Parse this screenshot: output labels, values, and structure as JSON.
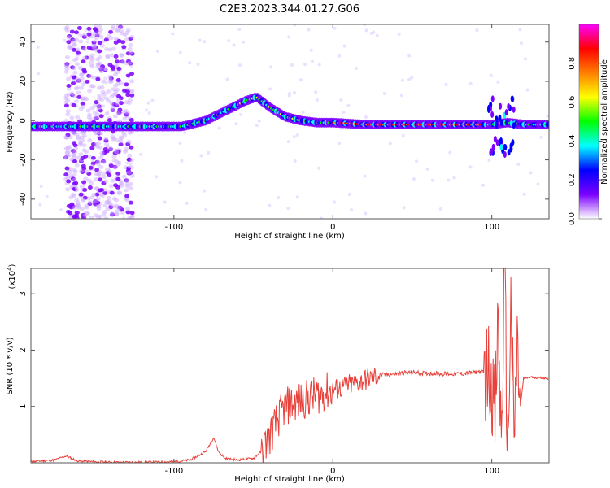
{
  "title": "C2E3.2023.344.01.27.G06",
  "chart_data": [
    {
      "type": "heatmap",
      "title": "C2E3.2023.344.01.27.G06",
      "xlabel": "Height of straight line (km)",
      "ylabel": "Frequency (Hz)",
      "xlim": [
        -190,
        136
      ],
      "ylim": [
        -50,
        49
      ],
      "xticks": [
        -100,
        0,
        100
      ],
      "yticks": [
        -40,
        -20,
        0,
        20,
        40
      ],
      "colorbar": {
        "label": "Normalized spectral amplitude",
        "range": [
          0.0,
          1.0
        ],
        "ticks": [
          "0.0",
          "0.2",
          "0.4",
          "0.6",
          "0.8"
        ],
        "colors": [
          "#ffffff",
          "#7b00ff",
          "#0000ff",
          "#00ffff",
          "#00ff00",
          "#ffff00",
          "#ff8000",
          "#ff0000",
          "#ff00ff"
        ]
      },
      "ridge": {
        "x": [
          -190,
          -160,
          -130,
          -110,
          -95,
          -80,
          -65,
          -55,
          -48,
          -40,
          -30,
          -20,
          -10,
          0,
          20,
          50,
          80,
          90,
          100,
          110,
          120,
          136
        ],
        "y": [
          -3,
          -3,
          -3,
          -3,
          -3,
          0,
          6,
          10,
          12,
          7,
          2,
          0,
          -1,
          -1,
          -2,
          -2,
          -2,
          -2,
          -2,
          -1,
          -2,
          -2
        ]
      }
    },
    {
      "type": "line",
      "xlabel": "Height of straight line (km)",
      "ylabel": "SNR (10 * v/v)",
      "yscale_label": "(x10",
      "yscale_exp": "4",
      "yscale_close": ")",
      "xlim": [
        -190,
        136
      ],
      "ylim": [
        0,
        3.45
      ],
      "xticks": [
        -100,
        0,
        100
      ],
      "yticks": [
        1,
        2,
        3
      ],
      "color": "#e8403a",
      "series": [
        {
          "x": [
            -190,
            -175,
            -168,
            -160,
            -140,
            -120,
            -100,
            -90,
            -85,
            -80,
            -75,
            -72,
            -68,
            -60,
            -50,
            -45,
            -40,
            -35,
            -30,
            -25,
            -20,
            -15,
            -10,
            -5,
            0,
            5,
            10,
            15,
            20,
            25,
            30,
            35,
            40,
            45,
            50,
            60,
            70,
            80,
            88,
            92,
            95,
            98,
            100,
            102,
            104,
            106,
            108,
            110,
            112,
            114,
            116,
            118,
            120,
            125,
            130,
            136
          ],
          "y": [
            0.02,
            0.05,
            0.12,
            0.03,
            0.01,
            0.01,
            0.02,
            0.05,
            0.12,
            0.2,
            0.45,
            0.2,
            0.08,
            0.05,
            0.08,
            0.2,
            0.45,
            0.75,
            1.0,
            1.05,
            1.1,
            1.15,
            1.2,
            1.25,
            1.3,
            1.32,
            1.38,
            1.42,
            1.47,
            1.52,
            1.56,
            1.57,
            1.58,
            1.6,
            1.6,
            1.59,
            1.58,
            1.58,
            1.6,
            1.62,
            1.6,
            1.65,
            1.45,
            0.8,
            2.5,
            0.3,
            3.4,
            0.15,
            2.8,
            0.4,
            2.0,
            1.0,
            1.5,
            1.52,
            1.51,
            1.5
          ]
        }
      ]
    }
  ]
}
